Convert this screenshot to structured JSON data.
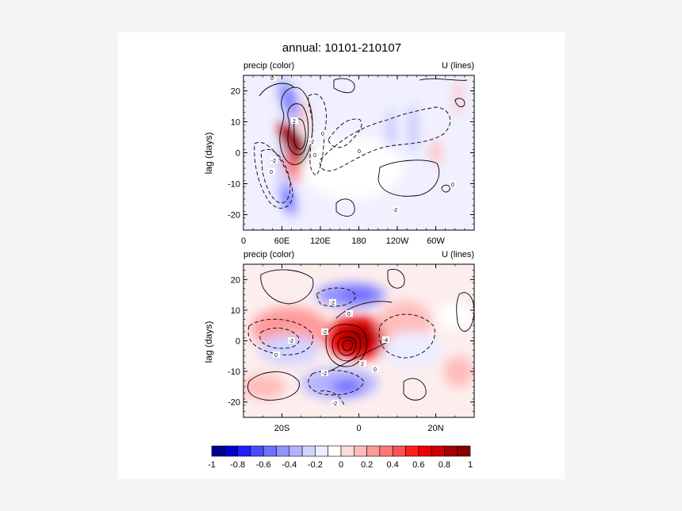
{
  "figure": {
    "title": "annual: 10101-210107"
  },
  "chart_data": [
    {
      "type": "heatmap",
      "panel": "top",
      "left_label": "precip (color)",
      "right_label": "U (lines)",
      "ylabel": "lag (days)",
      "x_ticks": [
        "0",
        "60E",
        "120E",
        "180",
        "120W",
        "60W"
      ],
      "y_ticks": [
        "20",
        "10",
        "0",
        "-10",
        "-20"
      ],
      "xlim": [
        0,
        360
      ],
      "ylim": [
        -25,
        25
      ],
      "contour_labels": [
        "0",
        "2",
        "-2",
        "0",
        "-2",
        "0",
        "0",
        "0",
        "-2",
        "0"
      ],
      "blobs": [
        {
          "x": 80,
          "y": 2,
          "rx": 14,
          "ry": 9,
          "rot": -30,
          "v": 0.9
        },
        {
          "x": 82,
          "y": 4,
          "rx": 8,
          "ry": 5,
          "rot": -30,
          "v": 1.0
        },
        {
          "x": 75,
          "y": -5,
          "rx": 10,
          "ry": 5,
          "rot": -30,
          "v": 0.4
        },
        {
          "x": 70,
          "y": 17,
          "rx": 12,
          "ry": 7,
          "rot": -20,
          "v": -0.5
        },
        {
          "x": 74,
          "y": 18,
          "rx": 5,
          "ry": 3,
          "rot": 0,
          "v": -0.7
        },
        {
          "x": 68,
          "y": -14,
          "rx": 11,
          "ry": 7,
          "rot": -20,
          "v": -0.5
        },
        {
          "x": 70,
          "y": -15,
          "rx": 5,
          "ry": 3,
          "rot": 0,
          "v": -0.7
        },
        {
          "x": 57,
          "y": -5,
          "rx": 6,
          "ry": 8,
          "rot": 0,
          "v": -0.25
        },
        {
          "x": 95,
          "y": 12,
          "rx": 6,
          "ry": 6,
          "rot": 0,
          "v": 0.2
        },
        {
          "x": 230,
          "y": 7,
          "rx": 5,
          "ry": 7,
          "rot": 0,
          "v": -0.3
        },
        {
          "x": 265,
          "y": 8,
          "rx": 5,
          "ry": 8,
          "rot": 0,
          "v": -0.35
        },
        {
          "x": 232,
          "y": -8,
          "rx": 4,
          "ry": 6,
          "rot": 0,
          "v": 0.15
        },
        {
          "x": 300,
          "y": 0,
          "rx": 8,
          "ry": 4,
          "rot": 0,
          "v": 0.15
        },
        {
          "x": 335,
          "y": 18,
          "rx": 5,
          "ry": 6,
          "rot": 0,
          "v": 0.2
        },
        {
          "x": 170,
          "y": -5,
          "rx": 80,
          "ry": 10,
          "rot": 0,
          "v": -0.1
        }
      ]
    },
    {
      "type": "heatmap",
      "panel": "bottom",
      "left_label": "precip (color)",
      "right_label": "U (lines)",
      "ylabel": "lag (days)",
      "x_ticks": [
        "20S",
        "0",
        "20N"
      ],
      "y_ticks": [
        "20",
        "10",
        "0",
        "-10",
        "-20"
      ],
      "xlim": [
        -30,
        30
      ],
      "ylim": [
        -25,
        25
      ],
      "contour_labels": [
        "-2",
        "0",
        "-2",
        "0",
        "-4",
        "-2",
        "2",
        "0",
        "-2",
        "-2"
      ],
      "blobs": [
        {
          "x": 0,
          "y": 1,
          "rx": 9,
          "ry": 7,
          "rot": 0,
          "v": 0.65
        },
        {
          "x": 0,
          "y": 1,
          "rx": 5,
          "ry": 4,
          "rot": 0,
          "v": 0.8
        },
        {
          "x": -1,
          "y": 0,
          "rx": 2.5,
          "ry": 2.5,
          "rot": 0,
          "v": 0.9
        },
        {
          "x": -18,
          "y": 4,
          "rx": 10,
          "ry": 7,
          "rot": 0,
          "v": 0.25
        },
        {
          "x": 12,
          "y": 6,
          "rx": 7,
          "ry": 7,
          "rot": 0,
          "v": 0.2
        },
        {
          "x": -2,
          "y": 15,
          "rx": 9,
          "ry": 4,
          "rot": 0,
          "v": -0.4
        },
        {
          "x": 0,
          "y": 15,
          "rx": 5,
          "ry": 2.5,
          "rot": 0,
          "v": -0.6
        },
        {
          "x": -5,
          "y": -14,
          "rx": 10,
          "ry": 5,
          "rot": 0,
          "v": -0.35
        },
        {
          "x": -3,
          "y": -15,
          "rx": 4,
          "ry": 2.5,
          "rot": 0,
          "v": -0.55
        },
        {
          "x": -18,
          "y": -3,
          "rx": 8,
          "ry": 5,
          "rot": 0,
          "v": -0.25
        },
        {
          "x": 14,
          "y": -3,
          "rx": 8,
          "ry": 6,
          "rot": 0,
          "v": -0.2
        },
        {
          "x": 25,
          "y": 8,
          "rx": 5,
          "ry": 4,
          "rot": 0,
          "v": -0.1
        },
        {
          "x": 26,
          "y": -10,
          "rx": 4,
          "ry": 5,
          "rot": 0,
          "v": 0.15
        },
        {
          "x": -25,
          "y": -15,
          "rx": 6,
          "ry": 4,
          "rot": 0,
          "v": 0.1
        }
      ]
    }
  ],
  "colorbar": {
    "labels": [
      "-1",
      "-0.8",
      "-0.6",
      "-0.4",
      "-0.2",
      "0",
      "0.2",
      "0.4",
      "0.6",
      "0.8",
      "1"
    ],
    "colors": [
      "#00008f",
      "#0000c8",
      "#1f1fff",
      "#4a4aff",
      "#7070ff",
      "#9393ff",
      "#b3b3ff",
      "#d3d3ff",
      "#ecedff",
      "#ffffff",
      "#ffdada",
      "#ffbcbc",
      "#ff9a9a",
      "#ff7878",
      "#ff5252",
      "#ff1f1f",
      "#ee0000",
      "#cc0000",
      "#a80000",
      "#880000"
    ]
  }
}
